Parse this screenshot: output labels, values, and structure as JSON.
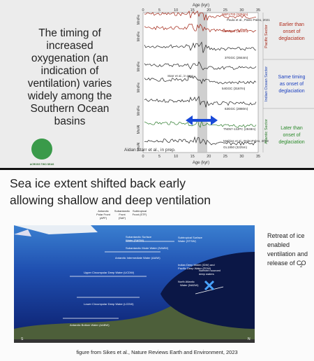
{
  "top_slide": {
    "heading": [
      "The timing of",
      "increased",
      "oxygenation (an",
      "indication of",
      "ventilation) varies",
      "widely among the",
      "Southern Ocean",
      "basins"
    ],
    "chart": {
      "x_label_top": "Age (kyr)",
      "x_label_bottom": "Age (kyr)",
      "xticks": [
        "0",
        "5",
        "10",
        "15",
        "20",
        "25",
        "30",
        "35"
      ],
      "y_labels": [
        "Mn/Fe",
        "Mn/Fe",
        "Mn/Fe",
        "Mn/Fe",
        "Mn/Fe",
        "Mn/Al",
        "Mn/Al"
      ],
      "records": [
        "NBP1703 (3294m)",
        "Paula et al., Paleo Paleo, 2021",
        "NBP9802 (3245m)",
        "37GGC (2844m)",
        "Starr et al., in prep.",
        "54GGC (3167m)",
        "63GGC (2880m)",
        "TN057-13JPC (2848m)",
        "Mathias et al., PaleoPaleo, 2023",
        "GL1850 (3225m)"
      ],
      "sectors": [
        "Pacific Sector",
        "Indian Ocean Sector",
        "Atlantic Sector"
      ]
    },
    "notes": [
      [
        "Earlier than",
        "onset of",
        "deglaciation"
      ],
      [
        "Same timing",
        "as onset of",
        "deglaciation"
      ],
      [
        "Later than",
        "onset of",
        "deglaciation"
      ]
    ],
    "logo": "ACROSS TWO SEAS",
    "credit": "Aidan Starr et al., in prep."
  },
  "bottom_slide": {
    "title": [
      "Sea ice extent shifted back early",
      "allowing shallow and deep ventilation"
    ],
    "diagram": {
      "fronts": [
        [
          "Antarctic",
          "Polar Front",
          "(APF)"
        ],
        [
          "Subantarctic",
          "Front",
          "(SAF)"
        ],
        [
          "Subtropical",
          "Front (STF)"
        ]
      ],
      "waters": [
        "Subantarctic Surface",
        "Water (SASW)",
        "Subtropical Surface",
        "Water (STSW)",
        "Subantarctic Mode Water (SAMW)",
        "Antarctic Intermediate Water (AAIW)",
        "Upper Circumpolar Deep Water (UCDW)",
        "Indian Deep Water (IDW) and",
        "Pacific Deep Water (PDW)",
        "Northern sourced",
        "deep waters",
        "North Atlantic",
        "Water (NADW)",
        "Lower Circumpolar Deep Water (LCDW)",
        "Antarctic Bottom Water (AABW)"
      ],
      "south": "S",
      "north": "N"
    },
    "side_text": [
      "Retreat of ice",
      "enabled",
      "ventilation and",
      "release of CO",
      "2"
    ],
    "caption": "figure from Sikes et al., Nature Reviews Earth and Environment, 2023"
  }
}
